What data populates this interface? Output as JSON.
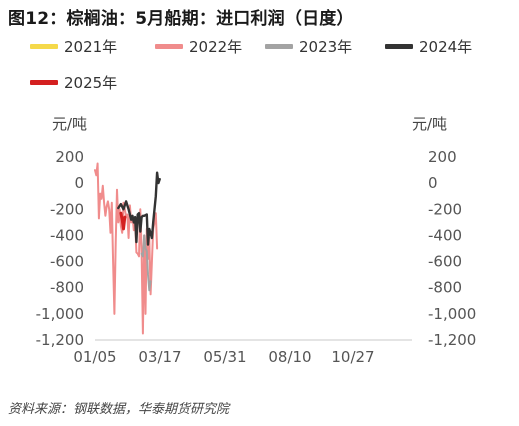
{
  "title": "图12：棕榈油：5月船期：进口利润（日度）",
  "source": "资料来源：钢联数据，华泰期货研究院",
  "chart_data": {
    "type": "line",
    "ylabel_left": "元/吨",
    "ylabel_right": "元/吨",
    "ylim": [
      -1200,
      200
    ],
    "yticks": [
      200,
      0,
      -200,
      -400,
      -600,
      -800,
      -1000,
      -1200
    ],
    "ytick_labels": [
      "200",
      "0",
      "-200",
      "-400",
      "-600",
      "-800",
      "-1,000",
      "-1,200"
    ],
    "xticks": [
      "01/05",
      "03/17",
      "05/31",
      "08/10",
      "10/27"
    ],
    "legend_position": "top",
    "grid": false,
    "series": [
      {
        "name": "2021年",
        "color": "#f5d94a",
        "values": []
      },
      {
        "name": "2022年",
        "color": "#f08c8c",
        "values": [
          [
            0,
            100
          ],
          [
            1,
            60
          ],
          [
            2,
            150
          ],
          [
            3,
            -270
          ],
          [
            4,
            -80
          ],
          [
            5,
            -120
          ],
          [
            6,
            -20
          ],
          [
            7,
            -150
          ],
          [
            8,
            -250
          ],
          [
            9,
            -180
          ],
          [
            10,
            -140
          ],
          [
            11,
            -200
          ],
          [
            12,
            -380
          ],
          [
            13,
            -150
          ],
          [
            14,
            -600
          ],
          [
            15,
            -1000
          ],
          [
            16,
            -460
          ],
          [
            17,
            -50
          ],
          [
            18,
            -300
          ],
          [
            19,
            -200
          ],
          [
            20,
            -330
          ],
          [
            21,
            -380
          ],
          [
            22,
            -150
          ],
          [
            23,
            -200
          ],
          [
            24,
            -260
          ],
          [
            25,
            -240
          ],
          [
            26,
            -420
          ],
          [
            27,
            -170
          ],
          [
            28,
            -300
          ],
          [
            29,
            -250
          ],
          [
            30,
            -360
          ],
          [
            31,
            -300
          ],
          [
            32,
            -530
          ],
          [
            33,
            -540
          ],
          [
            34,
            -560
          ],
          [
            35,
            -200
          ],
          [
            36,
            -520
          ],
          [
            37,
            -1150
          ],
          [
            38,
            -400
          ],
          [
            39,
            -1000
          ],
          [
            40,
            -350
          ],
          [
            41,
            -580
          ],
          [
            42,
            -420
          ],
          [
            43,
            -850
          ],
          [
            44,
            -600
          ],
          [
            45,
            -350
          ],
          [
            46,
            -300
          ],
          [
            47,
            -230
          ],
          [
            48,
            -500
          ]
        ]
      },
      {
        "name": "2023年",
        "color": "#a3a3a3",
        "values": [
          [
            36,
            -540
          ],
          [
            37,
            -560
          ],
          [
            38,
            -400
          ],
          [
            39,
            -500
          ],
          [
            40,
            -520
          ],
          [
            41,
            -700
          ],
          [
            42,
            -820
          ],
          [
            43,
            -750
          ]
        ]
      },
      {
        "name": "2024年",
        "color": "#333333",
        "values": [
          [
            18,
            -190
          ],
          [
            20,
            -160
          ],
          [
            22,
            -200
          ],
          [
            24,
            -140
          ],
          [
            26,
            -200
          ],
          [
            28,
            -280
          ],
          [
            29,
            -250
          ],
          [
            30,
            -300
          ],
          [
            31,
            -260
          ],
          [
            32,
            -450
          ],
          [
            33,
            -240
          ],
          [
            34,
            -230
          ],
          [
            35,
            -370
          ],
          [
            36,
            -260
          ],
          [
            37,
            -250
          ],
          [
            38,
            -250
          ],
          [
            40,
            -240
          ],
          [
            41,
            -470
          ],
          [
            42,
            -350
          ],
          [
            44,
            -420
          ],
          [
            45,
            -300
          ],
          [
            46,
            -200
          ],
          [
            47,
            -100
          ],
          [
            48,
            80
          ],
          [
            49,
            0
          ],
          [
            50,
            30
          ]
        ]
      },
      {
        "name": "2025年",
        "color": "#d42020",
        "values": [
          [
            20,
            -230
          ],
          [
            21,
            -280
          ],
          [
            22,
            -350
          ],
          [
            23,
            -260
          ]
        ]
      }
    ]
  }
}
